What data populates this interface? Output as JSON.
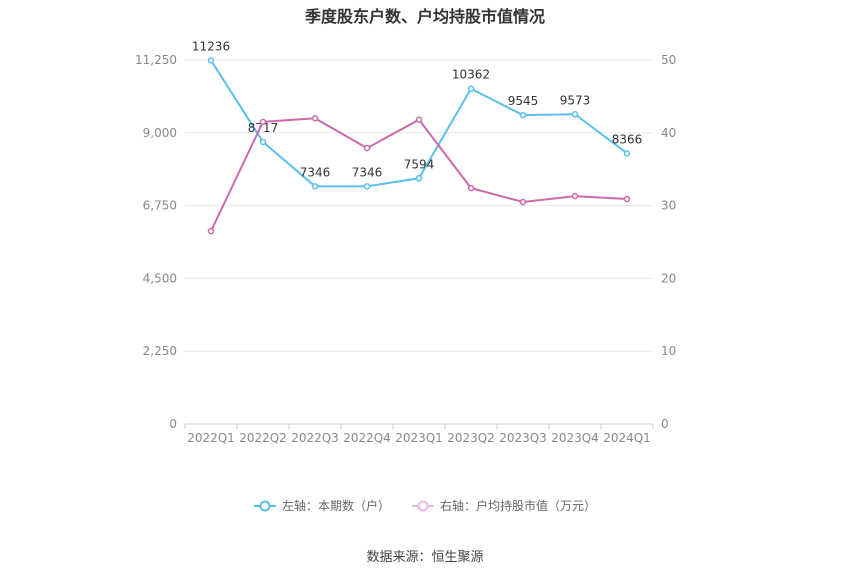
{
  "chart_data": {
    "type": "line",
    "title": "季度股东户数、户均持股市值情况",
    "categories": [
      "2022Q1",
      "2022Q2",
      "2022Q3",
      "2022Q4",
      "2023Q1",
      "2023Q2",
      "2023Q3",
      "2023Q4",
      "2024Q1"
    ],
    "y_left": {
      "min": 0,
      "max": 11250,
      "ticks": [
        "0",
        "2,250",
        "4,500",
        "6,750",
        "9,000",
        "11,250"
      ]
    },
    "y_right": {
      "min": 0,
      "max": 50,
      "ticks": [
        "0",
        "10",
        "20",
        "30",
        "40",
        "50"
      ]
    },
    "grid": true,
    "legend_position": "bottom",
    "series": [
      {
        "name": "左轴：本期数（户）",
        "axis": "left",
        "color": "#5bc0eb",
        "values": [
          11236,
          8717,
          7346,
          7346,
          7594,
          10362,
          9545,
          9573,
          8366
        ],
        "labels": [
          "11236",
          "8717",
          "7346",
          "7346",
          "7594",
          "10362",
          "9545",
          "9573",
          "8366"
        ]
      },
      {
        "name": "右轴：户均持股市值（万元）",
        "axis": "right",
        "color": "#cc6aaa",
        "values": [
          26.5,
          41.5,
          42.0,
          37.9,
          41.8,
          32.4,
          30.5,
          31.3,
          30.9
        ]
      }
    ]
  },
  "source": "数据来源：恒生聚源"
}
